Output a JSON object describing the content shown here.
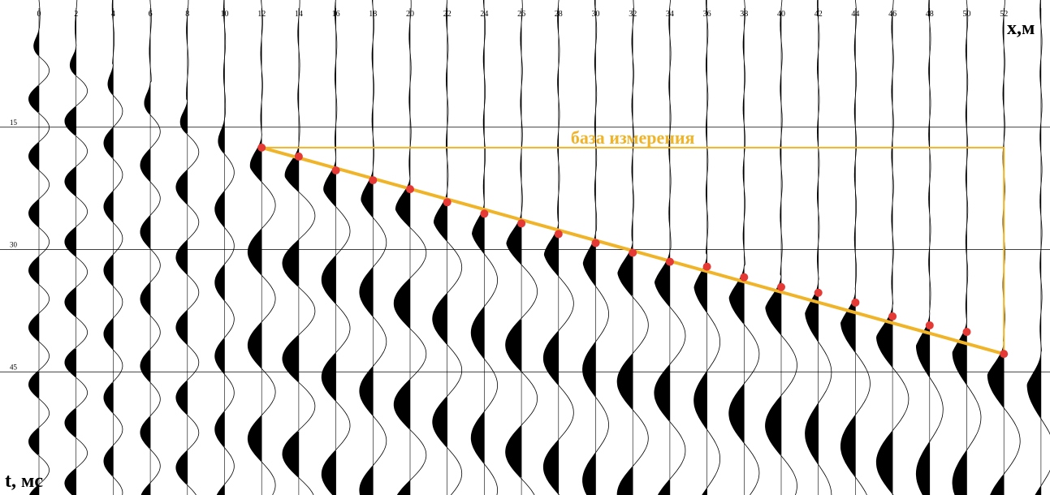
{
  "chart_data": {
    "type": "seismogram",
    "x_axis": {
      "label": "x,м",
      "ticks": [
        0,
        2,
        4,
        6,
        8,
        10,
        12,
        14,
        16,
        18,
        20,
        22,
        24,
        26,
        28,
        30,
        32,
        34,
        36,
        38,
        40,
        42,
        44,
        46,
        48,
        50,
        52
      ],
      "range": [
        0,
        54.5
      ]
    },
    "t_axis": {
      "label": "t, мс",
      "ticks": [
        15,
        30,
        45
      ],
      "range": [
        0,
        60
      ],
      "direction": "down"
    },
    "grid": true,
    "first_arrivals": {
      "x": [
        12,
        14,
        16,
        18,
        20,
        22,
        24,
        26,
        28,
        30,
        32,
        34,
        36,
        38,
        40,
        42,
        44,
        46,
        48,
        50,
        52
      ],
      "t": [
        17.5,
        18.6,
        20.3,
        21.5,
        22.6,
        24.2,
        25.6,
        26.8,
        28.1,
        29.2,
        30.4,
        31.5,
        32.1,
        33.4,
        34.6,
        35.3,
        36.5,
        38.2,
        39.3,
        40.1,
        42.8
      ]
    },
    "annotation": {
      "label": "база измерения",
      "x_start": 12,
      "x_end": 52,
      "t_top": 17.5,
      "t_bottom": 42.8
    },
    "colors": {
      "trace": "#000000",
      "grid": "#000000",
      "picks": "#e53935",
      "annotation": "#f0b429"
    }
  }
}
